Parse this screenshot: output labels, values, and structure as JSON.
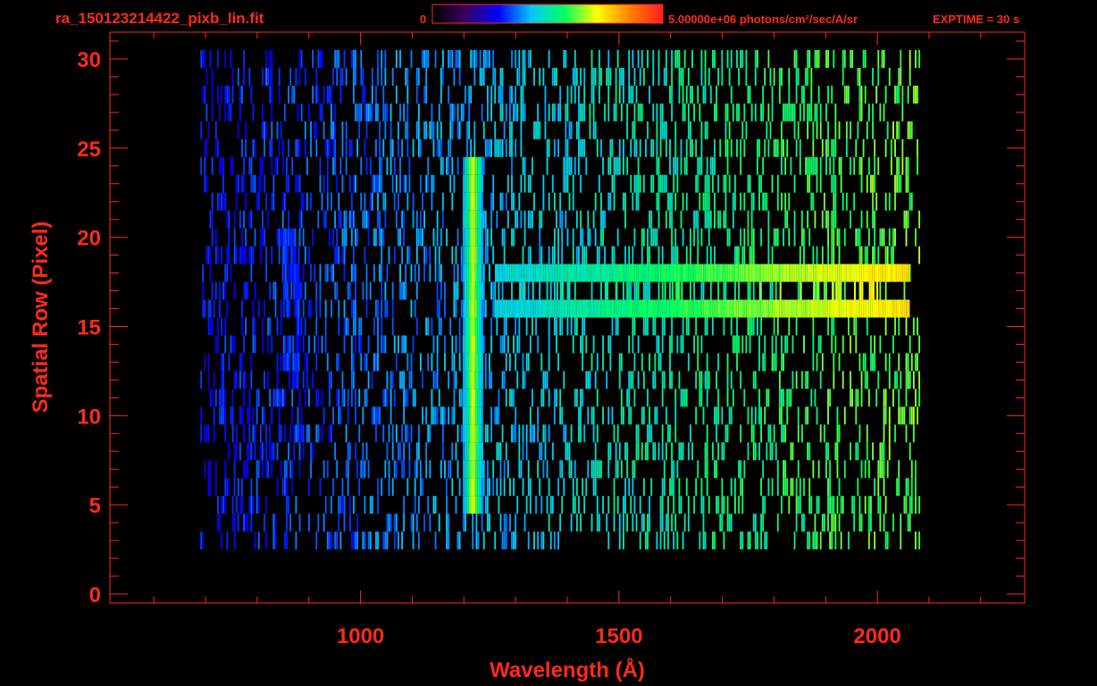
{
  "chart_data": {
    "type": "heatmap",
    "title": "ra_150123214422_pixb_lin.fit",
    "colorbar": {
      "min_label": "0",
      "max_label": "5.00000e+06 photons/cm²/sec/A/sr",
      "min": 0,
      "max": 5000000,
      "colormap": [
        "#000000",
        "#3a0060",
        "#0000ff",
        "#00c8ff",
        "#00ff60",
        "#ffff00",
        "#ff8000",
        "#ff2020"
      ]
    },
    "exposure_label": "EXPTIME = 30 s",
    "xlabel": "Wavelength (Å)",
    "ylabel": "Spatial Row (Pixel)",
    "x_ticks": [
      "1000",
      "1500",
      "2000"
    ],
    "y_ticks": [
      "0",
      "5",
      "10",
      "15",
      "20",
      "25",
      "30"
    ],
    "xlim": [
      515,
      2285
    ],
    "ylim": [
      -0.5,
      31.5
    ],
    "detector_x_range": [
      690,
      2080
    ],
    "detector_rows": [
      3,
      30
    ],
    "features": [
      {
        "kind": "emission_line_vertical",
        "wavelength": 1216,
        "rows": [
          5,
          24
        ],
        "level_fraction": 0.7
      },
      {
        "kind": "continuum_band",
        "wavelength_range": [
          1260,
          2060
        ],
        "rows": [
          16,
          18
        ],
        "level_fraction_range": [
          0.45,
          0.75
        ]
      },
      {
        "kind": "diffuse_patch",
        "wavelength_range": [
          850,
          880
        ],
        "rows": [
          12,
          20
        ],
        "level_fraction": 0.32
      }
    ]
  }
}
